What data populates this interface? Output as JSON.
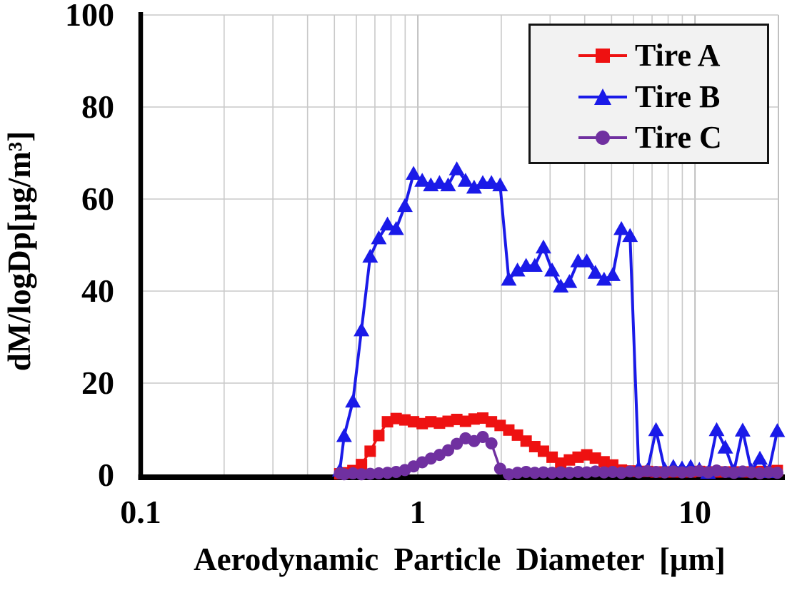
{
  "chart_data": {
    "type": "line",
    "title": "",
    "xlabel": "Aerodynamic Particle Diameter [μm]",
    "ylabel": "dM/logDp[μg/m³]",
    "xscale": "log",
    "xlim": [
      0.1,
      20
    ],
    "ylim": [
      0,
      100
    ],
    "grid": "on",
    "legend_position": "top-right",
    "xtick_labels": [
      "0.1",
      "1",
      "10"
    ],
    "xtick_values": [
      0.1,
      1,
      10
    ],
    "ytick_labels": [
      "0",
      "20",
      "40",
      "60",
      "80",
      "100"
    ],
    "ytick_values": [
      0,
      20,
      40,
      60,
      80,
      100
    ],
    "x": [
      0.523,
      0.542,
      0.583,
      0.626,
      0.673,
      0.723,
      0.777,
      0.835,
      0.898,
      0.965,
      1.037,
      1.114,
      1.197,
      1.286,
      1.382,
      1.486,
      1.596,
      1.715,
      1.843,
      1.981,
      2.129,
      2.288,
      2.458,
      2.642,
      2.839,
      3.051,
      3.278,
      3.523,
      3.786,
      4.068,
      4.371,
      4.698,
      5.048,
      5.425,
      5.829,
      6.264,
      6.732,
      7.234,
      7.774,
      8.354,
      8.977,
      9.647,
      10.37,
      11.14,
      11.97,
      12.86,
      13.82,
      14.86,
      15.96,
      17.15,
      18.43,
      19.81
    ],
    "series": [
      {
        "name": "Tire A",
        "color": "#ee1111",
        "marker": "square",
        "values": [
          0.3,
          0.5,
          1.0,
          2.3,
          5.2,
          8.6,
          11.6,
          12.3,
          12.0,
          11.6,
          11.2,
          11.6,
          11.3,
          11.7,
          12.1,
          11.7,
          12.2,
          12.4,
          11.6,
          10.8,
          9.8,
          8.7,
          7.4,
          6.2,
          5.2,
          3.9,
          2.6,
          3.3,
          3.9,
          4.4,
          3.7,
          2.9,
          2.2,
          1.1,
          0.9,
          0.8,
          0.8,
          0.7,
          0.7,
          0.7,
          0.7,
          0.7,
          0.8,
          0.7,
          0.7,
          0.7,
          0.7,
          0.7,
          0.7,
          0.8,
          0.8,
          1.0
        ]
      },
      {
        "name": "Tire B",
        "color": "#1a1ae8",
        "marker": "triangle",
        "values": [
          1.0,
          8.5,
          16.0,
          31.5,
          47.5,
          51.5,
          54.5,
          53.5,
          58.5,
          65.5,
          64.0,
          63.0,
          63.5,
          63.0,
          66.5,
          64.0,
          62.5,
          63.5,
          63.5,
          63.0,
          42.5,
          44.5,
          45.5,
          45.5,
          49.5,
          44.5,
          41.0,
          42.0,
          46.5,
          46.5,
          44.0,
          42.5,
          43.5,
          53.5,
          52.0,
          1.5,
          1.0,
          9.8,
          1.2,
          1.8,
          1.5,
          1.8,
          1.2,
          0.5,
          9.8,
          6.0,
          0.8,
          9.7,
          1.0,
          3.6,
          0.7,
          9.6
        ]
      },
      {
        "name": "Tire C",
        "color": "#7030a0",
        "marker": "circle",
        "values": [
          0.4,
          0.2,
          0.4,
          0.2,
          0.3,
          0.4,
          0.5,
          0.7,
          1.1,
          1.9,
          2.8,
          3.6,
          4.4,
          5.4,
          6.8,
          8.0,
          7.4,
          8.3,
          6.9,
          1.4,
          0.2,
          0.5,
          0.7,
          0.5,
          0.6,
          0.5,
          0.6,
          0.5,
          0.7,
          0.6,
          0.8,
          0.6,
          0.7,
          0.5,
          0.8,
          0.6,
          0.9,
          0.7,
          0.6,
          0.8,
          0.6,
          0.7,
          0.9,
          0.6,
          1.0,
          0.7,
          0.5,
          0.8,
          0.6,
          0.4,
          0.6,
          0.5
        ]
      }
    ],
    "colors": {
      "axis": "#000000",
      "grid_minor": "#c9c9c9",
      "grid_major": "#b9b9b9",
      "legend_bg": "#f2f2f2",
      "legend_border": "#141414"
    }
  }
}
